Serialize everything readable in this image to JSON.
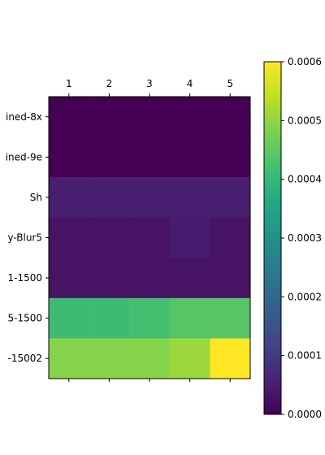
{
  "chart_data": {
    "type": "heatmap",
    "title": "",
    "xlabel": "",
    "ylabel": "",
    "x_tick_labels": [
      "1",
      "2",
      "3",
      "4",
      "5"
    ],
    "y_tick_labels": [
      "ined-8x",
      "ined-9e",
      "Sh",
      "y-Blur5",
      "1-1500",
      "5-1500",
      "-15002"
    ],
    "values": [
      [
        0.0,
        0.0,
        0.0,
        0.0,
        0.0
      ],
      [
        0.0,
        0.0,
        0.0,
        0.0,
        0.0
      ],
      [
        5e-05,
        5e-05,
        5e-05,
        5e-05,
        5e-05
      ],
      [
        3e-05,
        3e-05,
        3e-05,
        4.5e-05,
        3e-05
      ],
      [
        3e-05,
        3e-05,
        3e-05,
        3e-05,
        3e-05
      ],
      [
        0.00041,
        0.00041,
        0.00042,
        0.00044,
        0.00044
      ],
      [
        0.00049,
        0.00049,
        0.00049,
        0.00051,
        0.0006
      ]
    ],
    "colormap": "viridis",
    "colorbar": {
      "range": [
        0.0,
        0.0006
      ],
      "ticks": [
        0.0,
        0.0001,
        0.0002,
        0.0003,
        0.0004,
        0.0005,
        0.0006
      ],
      "tick_labels": [
        "0.0000",
        "0.0001",
        "0.0002",
        "0.0003",
        "0.0004",
        "0.0005",
        "0.0006"
      ]
    },
    "x_axis_position": "top",
    "grid": false
  }
}
